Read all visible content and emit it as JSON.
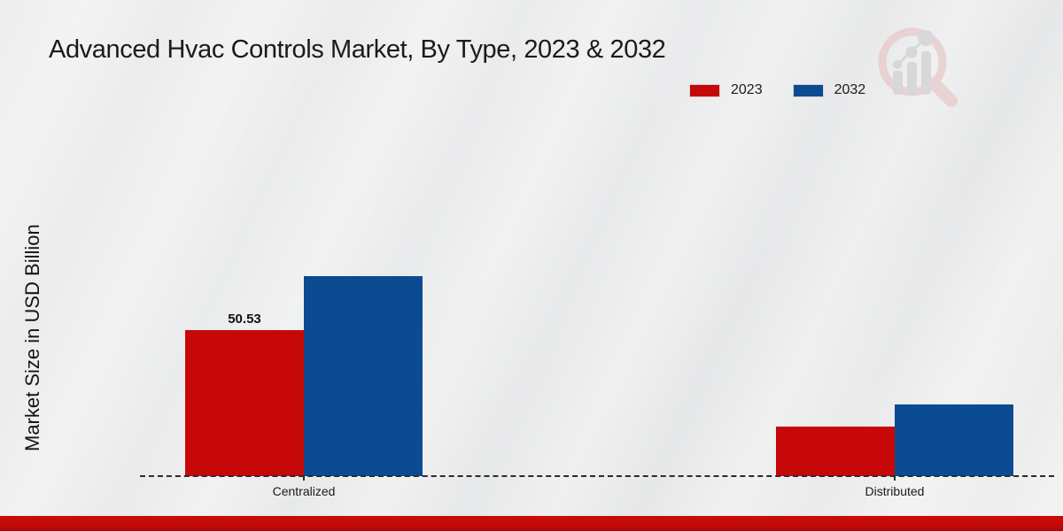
{
  "title": "Advanced Hvac Controls Market, By Type, 2023 & 2032",
  "legend": [
    {
      "label": "2023",
      "color": "#c70808"
    },
    {
      "label": "2032",
      "color": "#0a4b91"
    }
  ],
  "chart_data": {
    "type": "bar",
    "title": "Advanced Hvac Controls Market, By Type, 2023 & 2032",
    "categories": [
      "Centralized",
      "Distributed"
    ],
    "series": [
      {
        "name": "2023",
        "color": "#c70808",
        "values": [
          50.53,
          17.2
        ],
        "labels": [
          "50.53",
          ""
        ]
      },
      {
        "name": "2032",
        "color": "#0a4b91",
        "values": [
          69.2,
          24.8
        ],
        "labels": [
          "",
          ""
        ]
      }
    ],
    "xlabel": "",
    "ylabel": "Market Size in USD Billion",
    "ylim": [
      0,
      75
    ],
    "grid": false,
    "legend_position": "upper right",
    "data_labels_note": "only Centralized 2023 bar is labeled"
  },
  "icons": {
    "logo": "magnifier-barchart-logo"
  },
  "colors": {
    "background": "#e9eaeb",
    "axis": "#2b2b2b",
    "footer_bar": "#c40909",
    "logo_pink": "#e5bcbc",
    "logo_gray": "#c6c6ca"
  }
}
